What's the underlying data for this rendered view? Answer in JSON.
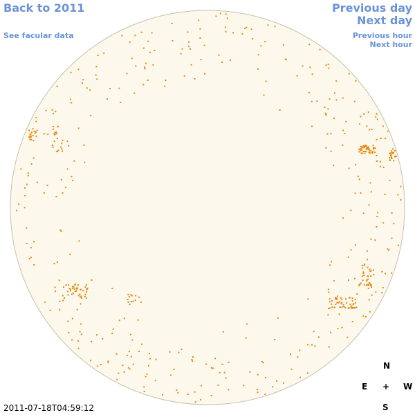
{
  "nav": {
    "back": "Back to 2011",
    "facular": "See facular data",
    "previous_day": "Previous day",
    "next_day": "Next day",
    "previous_hour": "Previous hour",
    "next_hour": "Next hour"
  },
  "compass": {
    "north": "N",
    "east": "E",
    "center": "+",
    "west": "W",
    "south": "S"
  },
  "timestamp": "2011-07-18T04:59:12"
}
